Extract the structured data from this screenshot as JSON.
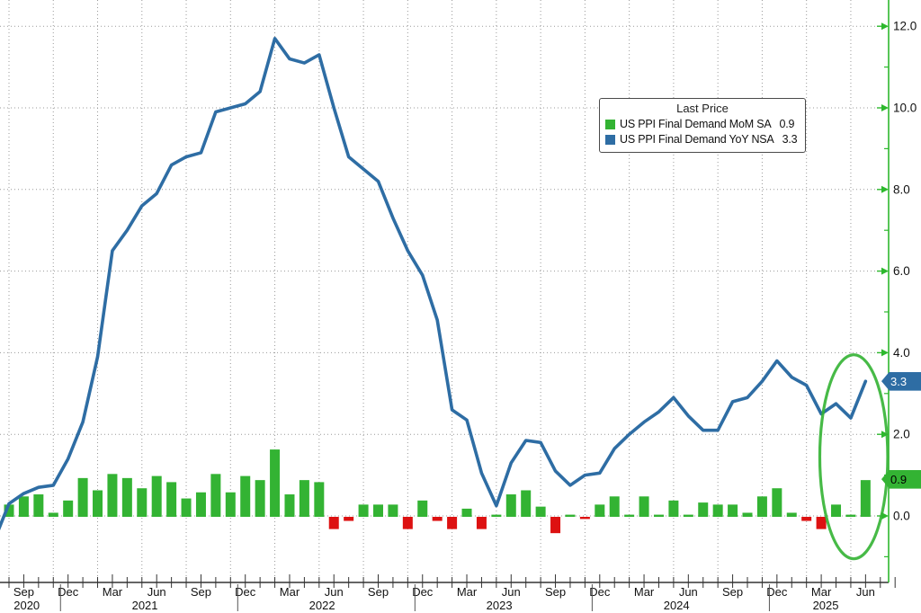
{
  "chart_data": {
    "type": "combo",
    "months": [
      "2020-08",
      "2020-09",
      "2020-10",
      "2020-11",
      "2020-12",
      "2021-01",
      "2021-02",
      "2021-03",
      "2021-04",
      "2021-05",
      "2021-06",
      "2021-07",
      "2021-08",
      "2021-09",
      "2021-10",
      "2021-11",
      "2021-12",
      "2022-01",
      "2022-02",
      "2022-03",
      "2022-04",
      "2022-05",
      "2022-06",
      "2022-07",
      "2022-08",
      "2022-09",
      "2022-10",
      "2022-11",
      "2022-12",
      "2023-01",
      "2023-02",
      "2023-03",
      "2023-04",
      "2023-05",
      "2023-06",
      "2023-07",
      "2023-08",
      "2023-09",
      "2023-10",
      "2023-11",
      "2023-12",
      "2024-01",
      "2024-02",
      "2024-03",
      "2024-04",
      "2024-05",
      "2024-06",
      "2024-07",
      "2024-08",
      "2024-09",
      "2024-10",
      "2024-11",
      "2024-12",
      "2025-01",
      "2025-02",
      "2025-03",
      "2025-04",
      "2025-05",
      "2025-06",
      "2025-07"
    ],
    "series": [
      {
        "name": "US PPI Final Demand MoM SA",
        "type": "bar",
        "color_positive": "#33b333",
        "color_negative": "#dd1111",
        "last": 0.9,
        "values": [
          null,
          0.3,
          0.5,
          0.55,
          0.1,
          0.4,
          0.95,
          0.65,
          1.05,
          0.95,
          0.7,
          1.0,
          0.85,
          0.45,
          0.6,
          1.05,
          0.6,
          1.0,
          0.9,
          1.65,
          0.55,
          0.9,
          0.85,
          -0.3,
          -0.1,
          0.3,
          0.3,
          0.3,
          -0.3,
          0.4,
          -0.1,
          -0.3,
          0.2,
          -0.3,
          0.05,
          0.55,
          0.65,
          0.25,
          -0.4,
          0.05,
          -0.05,
          0.3,
          0.5,
          0.05,
          0.5,
          0.05,
          0.4,
          0.05,
          0.35,
          0.3,
          0.3,
          0.1,
          0.5,
          0.7,
          0.1,
          -0.1,
          -0.3,
          0.3,
          0.05,
          0.9
        ]
      },
      {
        "name": "US PPI Final Demand YoY NSA",
        "type": "line",
        "color": "#2e6da4",
        "last": 3.3,
        "values": [
          -0.6,
          0.3,
          0.55,
          0.7,
          0.75,
          1.4,
          2.3,
          3.9,
          6.5,
          7.0,
          7.6,
          7.9,
          8.6,
          8.8,
          8.9,
          9.9,
          10.0,
          10.1,
          10.4,
          11.7,
          11.2,
          11.1,
          11.3,
          10.0,
          8.8,
          8.5,
          8.2,
          7.3,
          6.5,
          5.9,
          4.8,
          2.6,
          2.35,
          1.05,
          0.25,
          1.3,
          1.85,
          1.8,
          1.1,
          0.75,
          1.0,
          1.05,
          1.65,
          2.0,
          2.3,
          2.55,
          2.9,
          2.45,
          2.1,
          2.1,
          2.8,
          2.9,
          3.3,
          3.8,
          3.4,
          3.2,
          2.5,
          2.75,
          2.4,
          3.3
        ]
      }
    ],
    "y_axis": {
      "side": "right",
      "color": "#2db82d",
      "ticks": [
        {
          "value": 0,
          "label": "0.0"
        },
        {
          "value": 2,
          "label": "2.0"
        },
        {
          "value": 4,
          "label": "4.0"
        },
        {
          "value": 6,
          "label": "6.0"
        },
        {
          "value": 8,
          "label": "8.0"
        },
        {
          "value": 10,
          "label": "10.0"
        },
        {
          "value": 12,
          "label": "12.0"
        }
      ],
      "minor_ticks": [
        -1,
        1,
        3,
        5,
        7,
        9,
        11
      ]
    },
    "x_axis": {
      "quarter_month_labels": {
        "03": "Mar",
        "06": "Jun",
        "09": "Sep",
        "12": "Dec"
      },
      "years": [
        {
          "label": "2020",
          "center_index": 2.2
        },
        {
          "label": "2021",
          "center_index": 10.2
        },
        {
          "label": "2022",
          "center_index": 22.2
        },
        {
          "label": "2023",
          "center_index": 34.2
        },
        {
          "label": "2024",
          "center_index": 46.2
        },
        {
          "label": "2025",
          "center_index": 56.3
        }
      ]
    },
    "legend": {
      "title": "Last Price",
      "items": [
        {
          "label": "US PPI Final Demand MoM SA",
          "value": "0.9",
          "color": "#33b333"
        },
        {
          "label": "US PPI Final Demand YoY NSA",
          "value": "3.3",
          "color": "#2e6da4"
        }
      ]
    },
    "last_price_tags": [
      {
        "label": "3.3",
        "value": 3.3,
        "bg": "#2e6da4",
        "fg": "#ffffff"
      },
      {
        "label": "0.9",
        "value": 0.9,
        "bg": "#33b333",
        "fg": "#000000"
      }
    ],
    "annotation": {
      "type": "ellipse",
      "center_month_index": 58.2,
      "center_value": 1.45,
      "radius_months": 2.3,
      "radius_value": 2.5,
      "color": "#33b333"
    },
    "grid": {
      "color": "#999999",
      "style": "dotted"
    }
  }
}
